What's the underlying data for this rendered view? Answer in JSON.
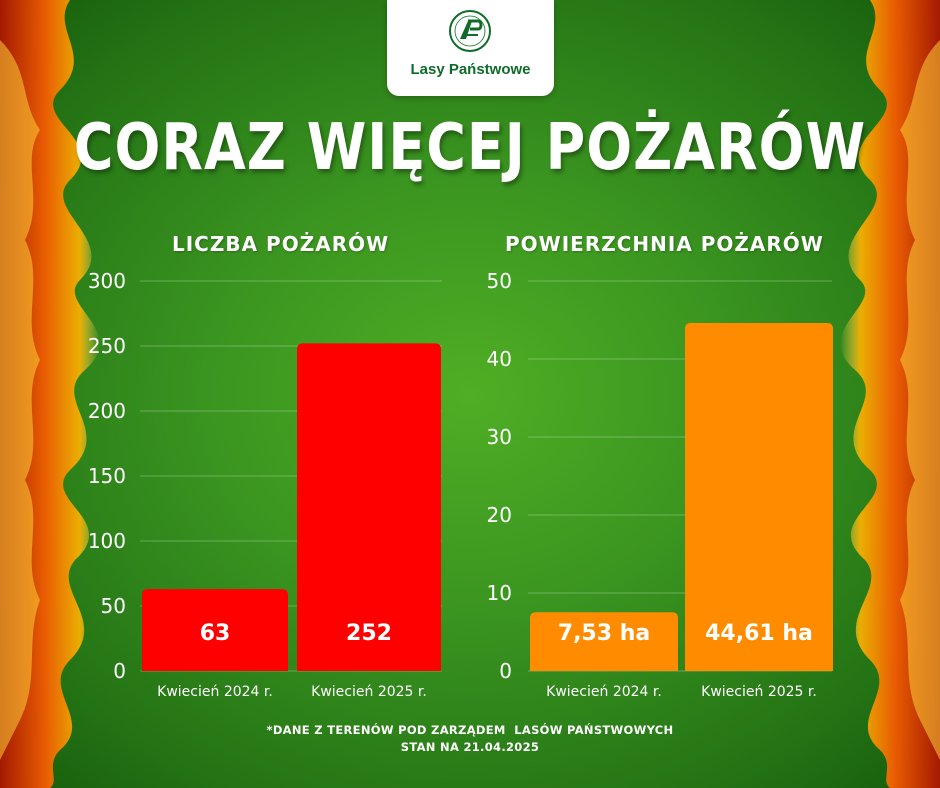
{
  "header": {
    "brand": "Lasy Państwowe",
    "title": "CORAZ WIĘCEJ POŻARÓW"
  },
  "colors": {
    "background": "#3a9420",
    "bars_fires": "#ff0000",
    "bars_area": "#ff8c00",
    "brand": "#0f6b2a"
  },
  "chart_data": [
    {
      "type": "bar",
      "title": "LICZBA POŻARÓW",
      "categories": [
        "Kwiecień 2024 r.",
        "Kwiecień 2025 r."
      ],
      "values": [
        63,
        252
      ],
      "data_labels": [
        "63",
        "252"
      ],
      "ylim": [
        0,
        300
      ],
      "yticks": [
        0,
        50,
        100,
        150,
        200,
        250,
        300
      ],
      "grid": true,
      "color": "#ff0000"
    },
    {
      "type": "bar",
      "title": "POWIERZCHNIA POŻARÓW",
      "categories": [
        "Kwiecień 2024 r.",
        "Kwiecień 2025 r."
      ],
      "values": [
        7.53,
        44.61
      ],
      "data_labels": [
        "7,53 ha",
        "44,61 ha"
      ],
      "ylim": [
        0,
        50
      ],
      "yticks": [
        0,
        10,
        20,
        30,
        40,
        50
      ],
      "grid": true,
      "color": "#ff8c00"
    }
  ],
  "footnote": {
    "line1": "*DANE Z TERENÓW POD ZARZĄDEM  LASÓW PAŃSTWOWYCH",
    "line2": "STAN NA 21.04.2025"
  }
}
